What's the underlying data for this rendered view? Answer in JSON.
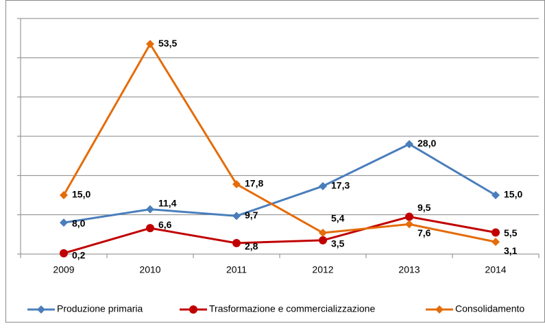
{
  "chart_data": {
    "type": "line",
    "categories": [
      "2009",
      "2010",
      "2011",
      "2012",
      "2013",
      "2014"
    ],
    "series": [
      {
        "name": "Produzione primaria",
        "color": "#4a7ebb",
        "marker": "diamond",
        "values": [
          8.0,
          11.4,
          9.7,
          17.3,
          28.0,
          15.0
        ],
        "value_labels": [
          "8,0",
          "11,4",
          "9,7",
          "17,3",
          "28,0",
          "15,0"
        ]
      },
      {
        "name": "Trasformazione e commercializzazione",
        "color": "#c00000",
        "marker": "circle",
        "values": [
          0.2,
          6.6,
          2.8,
          3.5,
          9.5,
          5.5
        ],
        "value_labels": [
          "0,2",
          "6,6",
          "2,8",
          "3,5",
          "9,5",
          "5,5"
        ]
      },
      {
        "name": "Consolidamento",
        "color": "#e46c0a",
        "marker": "diamond",
        "values": [
          15.0,
          53.5,
          17.8,
          5.4,
          7.6,
          3.1
        ],
        "value_labels": [
          "15,0",
          "53,5",
          "17,8",
          "5,4",
          "7,6",
          "3,1"
        ]
      }
    ],
    "ylim": [
      0,
      60
    ],
    "yticks": [
      0,
      10,
      20,
      30,
      40,
      50,
      60
    ],
    "grid": true,
    "legend": "bottom"
  }
}
